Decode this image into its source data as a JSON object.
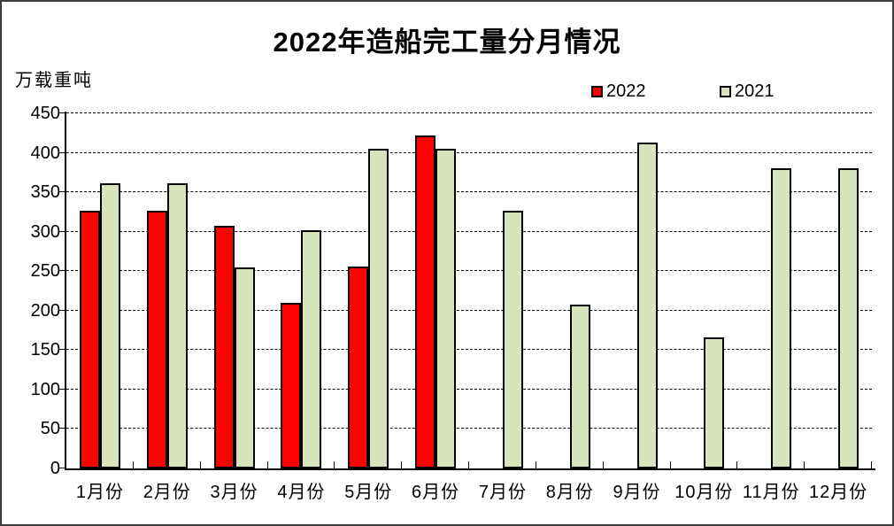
{
  "chart_data": {
    "type": "bar",
    "title": "2022年造船完工量分月情况",
    "unit_label": "万载重吨",
    "categories": [
      "1月份",
      "2月份",
      "3月份",
      "4月份",
      "5月份",
      "6月份",
      "7月份",
      "8月份",
      "9月份",
      "10月份",
      "11月份",
      "12月份"
    ],
    "series": [
      {
        "name": "2022",
        "color": "#ff0000",
        "values": [
          326,
          326,
          308,
          210,
          256,
          422,
          null,
          null,
          null,
          null,
          null,
          null
        ]
      },
      {
        "name": "2021",
        "color": "#d8e4bc",
        "values": [
          361,
          361,
          255,
          302,
          405,
          405,
          326,
          208,
          413,
          166,
          380,
          380
        ]
      }
    ],
    "ylim": [
      0,
      450
    ],
    "ytick_step": 50,
    "yticks": [
      0,
      50,
      100,
      150,
      200,
      250,
      300,
      350,
      400,
      450
    ],
    "grid": "horizontal-dashed",
    "legend_position": "top-right",
    "axis_color": "#000000",
    "gridline_color": "#000000",
    "background_color": "#ffffff"
  }
}
